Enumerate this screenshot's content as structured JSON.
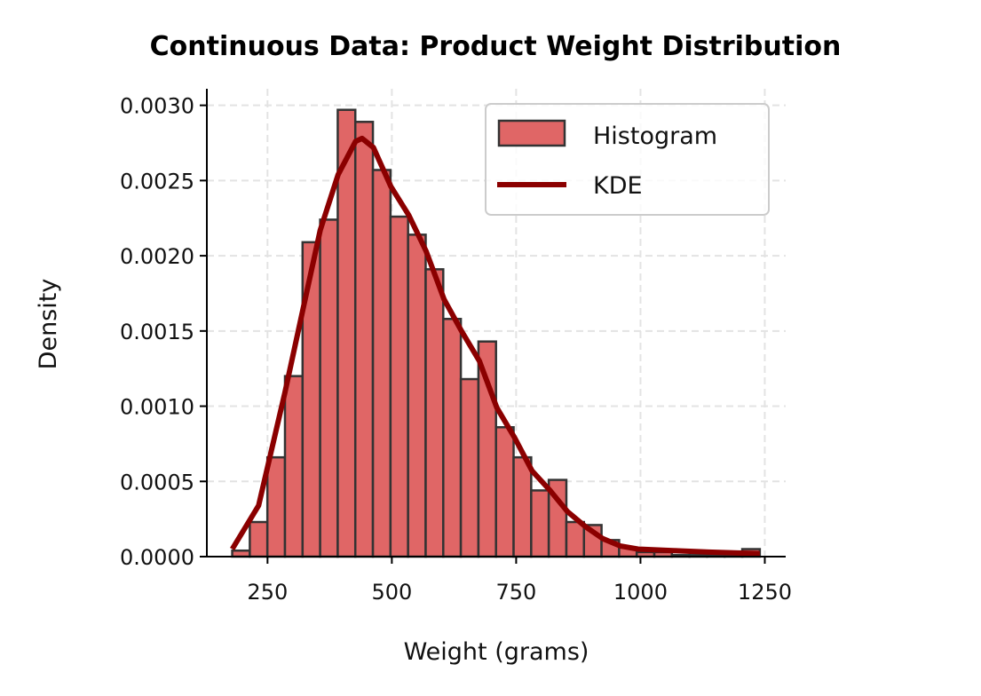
{
  "chart_data": {
    "type": "bar",
    "title": "Continuous Data: Product Weight Distribution",
    "xlabel": "Weight (grams)",
    "ylabel": "Density",
    "xlim": [
      128,
      1292
    ],
    "ylim": [
      0,
      0.00311
    ],
    "xticks": [
      250,
      500,
      750,
      1000,
      1250
    ],
    "yticks": [
      "0.0000",
      "0.0005",
      "0.0010",
      "0.0015",
      "0.0020",
      "0.0025",
      "0.0030"
    ],
    "grid": true,
    "legend_position": "top-right",
    "bin_start": 179,
    "bin_end": 1240,
    "series": [
      {
        "name": "Histogram",
        "type": "histogram",
        "color": "#e06666",
        "edgecolor": "#333333",
        "values": [
          4e-05,
          0.00023,
          0.00066,
          0.0012,
          0.00209,
          0.00224,
          0.00297,
          0.00289,
          0.00257,
          0.00226,
          0.00214,
          0.00191,
          0.00158,
          0.00118,
          0.00143,
          0.00086,
          0.00066,
          0.00044,
          0.00051,
          0.00023,
          0.00021,
          0.00011,
          6e-05,
          3e-05,
          3e-05,
          1e-05,
          1e-05,
          1e-05,
          1e-05,
          5e-05
        ]
      },
      {
        "name": "KDE",
        "type": "line",
        "color": "#8b0000",
        "x": [
          179,
          232,
          285,
          321,
          356,
          392,
          427,
          440,
          463,
          498,
          534,
          569,
          605,
          640,
          676,
          711,
          747,
          782,
          818,
          853,
          889,
          924,
          960,
          995,
          1066,
          1137,
          1240
        ],
        "y": [
          5e-05,
          0.00034,
          0.00109,
          0.00164,
          0.00217,
          0.00254,
          0.00276,
          0.00278,
          0.00272,
          0.00246,
          0.00227,
          0.00203,
          0.00171,
          0.0015,
          0.0013,
          0.00099,
          0.00079,
          0.00057,
          0.00044,
          0.0003,
          0.0002,
          0.00012,
          7e-05,
          5e-05,
          4e-05,
          3e-05,
          2e-05
        ]
      }
    ]
  }
}
